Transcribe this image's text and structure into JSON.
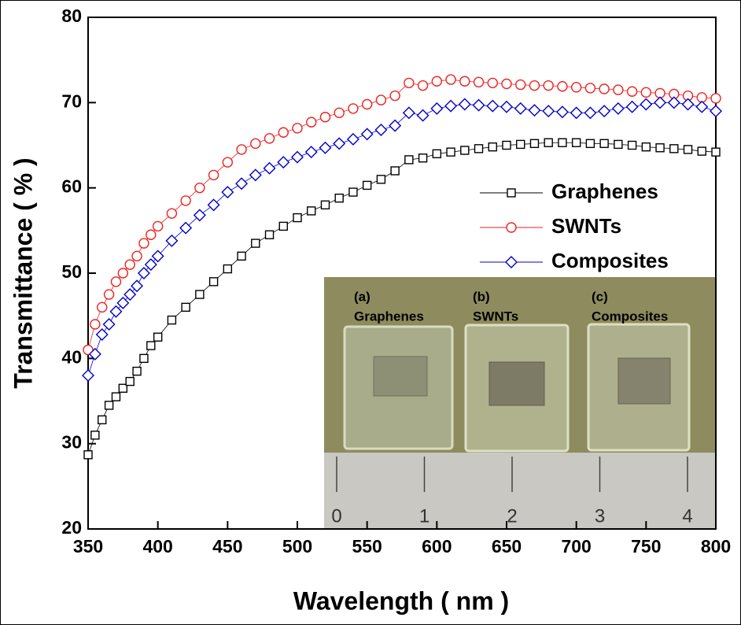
{
  "chart_data": {
    "type": "line",
    "xlabel": "Wavelength ( nm )",
    "ylabel": "Transmittance ( % )",
    "xlim": [
      350,
      800
    ],
    "xticks": [
      350,
      400,
      450,
      500,
      550,
      600,
      650,
      700,
      750,
      800
    ],
    "ylim": [
      20,
      80
    ],
    "yticks": [
      20,
      30,
      40,
      50,
      60,
      70,
      80
    ],
    "legend": "upper right",
    "x": [
      350,
      355,
      360,
      365,
      370,
      375,
      380,
      385,
      390,
      395,
      400,
      410,
      420,
      430,
      440,
      450,
      460,
      470,
      480,
      490,
      500,
      510,
      520,
      530,
      540,
      550,
      560,
      570,
      580,
      590,
      600,
      610,
      620,
      630,
      640,
      650,
      660,
      670,
      680,
      690,
      700,
      710,
      720,
      730,
      740,
      750,
      760,
      770,
      780,
      790,
      800
    ],
    "series": [
      {
        "name": "Graphenes",
        "color": "#000000",
        "marker": "square",
        "values": [
          28.7,
          31,
          32.8,
          34.5,
          35.5,
          36.5,
          37.3,
          38.5,
          40,
          41.5,
          42.5,
          44.5,
          46,
          47.5,
          49,
          50.5,
          52,
          53.5,
          54.5,
          55.5,
          56.5,
          57.3,
          58,
          58.8,
          59.5,
          60.3,
          61,
          62,
          63.3,
          63.5,
          64,
          64.2,
          64.4,
          64.6,
          64.8,
          65,
          65.1,
          65.2,
          65.3,
          65.3,
          65.3,
          65.2,
          65.2,
          65.1,
          65,
          64.8,
          64.7,
          64.6,
          64.5,
          64.3,
          64.2
        ]
      },
      {
        "name": "SWNTs",
        "color": "#ee2222",
        "marker": "circle",
        "values": [
          41,
          44,
          46,
          47.5,
          49,
          50,
          51,
          52,
          53.5,
          54.5,
          55.5,
          57,
          58.5,
          60,
          61.5,
          63,
          64.5,
          65.2,
          65.8,
          66.5,
          67,
          67.7,
          68.3,
          68.8,
          69.3,
          69.8,
          70.3,
          70.8,
          72.3,
          72,
          72.5,
          72.7,
          72.5,
          72.4,
          72.3,
          72.2,
          72.1,
          72,
          72,
          71.9,
          71.8,
          71.7,
          71.6,
          71.5,
          71.3,
          71.2,
          71.1,
          71,
          70.8,
          70.6,
          70.5
        ]
      },
      {
        "name": "Composites",
        "color": "#0000cc",
        "marker": "diamond",
        "values": [
          38,
          40.5,
          42.8,
          44,
          45.5,
          46.5,
          47.5,
          48.5,
          50,
          51,
          52,
          53.8,
          55.3,
          56.8,
          58,
          59.5,
          60.5,
          61.5,
          62.3,
          63,
          63.6,
          64.2,
          64.7,
          65.2,
          65.7,
          66.3,
          66.8,
          67.3,
          68.8,
          68.5,
          69.3,
          69.6,
          69.8,
          69.7,
          69.6,
          69.5,
          69.3,
          69.1,
          69,
          68.9,
          68.8,
          68.8,
          69,
          69.3,
          69.5,
          69.8,
          70,
          70,
          69.8,
          69.5,
          69
        ]
      }
    ],
    "inset": {
      "panels": [
        {
          "tag": "(a)",
          "name": "Graphenes"
        },
        {
          "tag": "(b)",
          "name": "SWNTs"
        },
        {
          "tag": "(c)",
          "name": "Composites"
        }
      ],
      "ruler": [
        0,
        1,
        2,
        3,
        4
      ]
    }
  }
}
